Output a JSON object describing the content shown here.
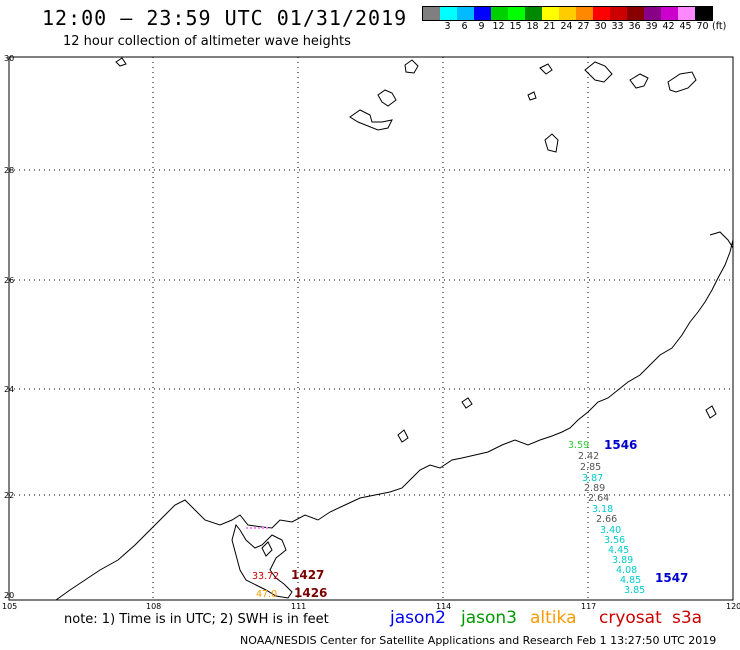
{
  "title": "12:00 – 23:59 UTC 01/31/2019",
  "subtitle": "12 hour collection of altimeter wave heights",
  "legend": {
    "colors": [
      "#7f7f7f",
      "#00ffff",
      "#00bbff",
      "#0000ff",
      "#00d000",
      "#00ff00",
      "#008800",
      "#ffff00",
      "#ffcc00",
      "#ff8800",
      "#ff0000",
      "#cc0000",
      "#880000",
      "#880088",
      "#cc00cc",
      "#ff88ff",
      "#000000"
    ],
    "labels": [
      "",
      "3",
      "6",
      "9",
      "12",
      "15",
      "18",
      "21",
      "24",
      "27",
      "30",
      "33",
      "36",
      "39",
      "42",
      "45",
      "70"
    ],
    "unit": "(ft)"
  },
  "axes": {
    "lat_labels": [
      "30",
      "28",
      "26",
      "24",
      "22",
      "20"
    ],
    "lon_labels": [
      "105",
      "108",
      "111",
      "114",
      "117",
      "120"
    ]
  },
  "tracks": [
    {
      "label": "1546",
      "color": "#0000cc",
      "swh": [
        "3.59",
        "2.42",
        "2.85",
        "3.87",
        "2.89",
        "2.64",
        "3.18",
        "2.66",
        "3.40",
        "3.56",
        "4.45",
        "3.89",
        "4.08",
        "4.85",
        "3.85"
      ]
    },
    {
      "label": "1547",
      "color": "#0000cc"
    },
    {
      "label": "1427",
      "color": "#7a0000",
      "swh": [
        "33.72"
      ]
    },
    {
      "label": "1426",
      "color": "#7a0000",
      "swh": [
        "47.0"
      ]
    }
  ],
  "note": "note: 1) Time is in UTC; 2) SWH is in feet",
  "satellites": [
    {
      "name": "jason2",
      "color": "#0000ee"
    },
    {
      "name": "jason3",
      "color": "#009900"
    },
    {
      "name": "altika",
      "color": "#ff9900"
    },
    {
      "name": "cryosat",
      "color": "#cc0000"
    },
    {
      "name": "s3a",
      "color": "#cc0000"
    }
  ],
  "credit": "NOAA/NESDIS Center for Satellite Applications and Research   Feb  1 13:27:50 UTC 2019"
}
